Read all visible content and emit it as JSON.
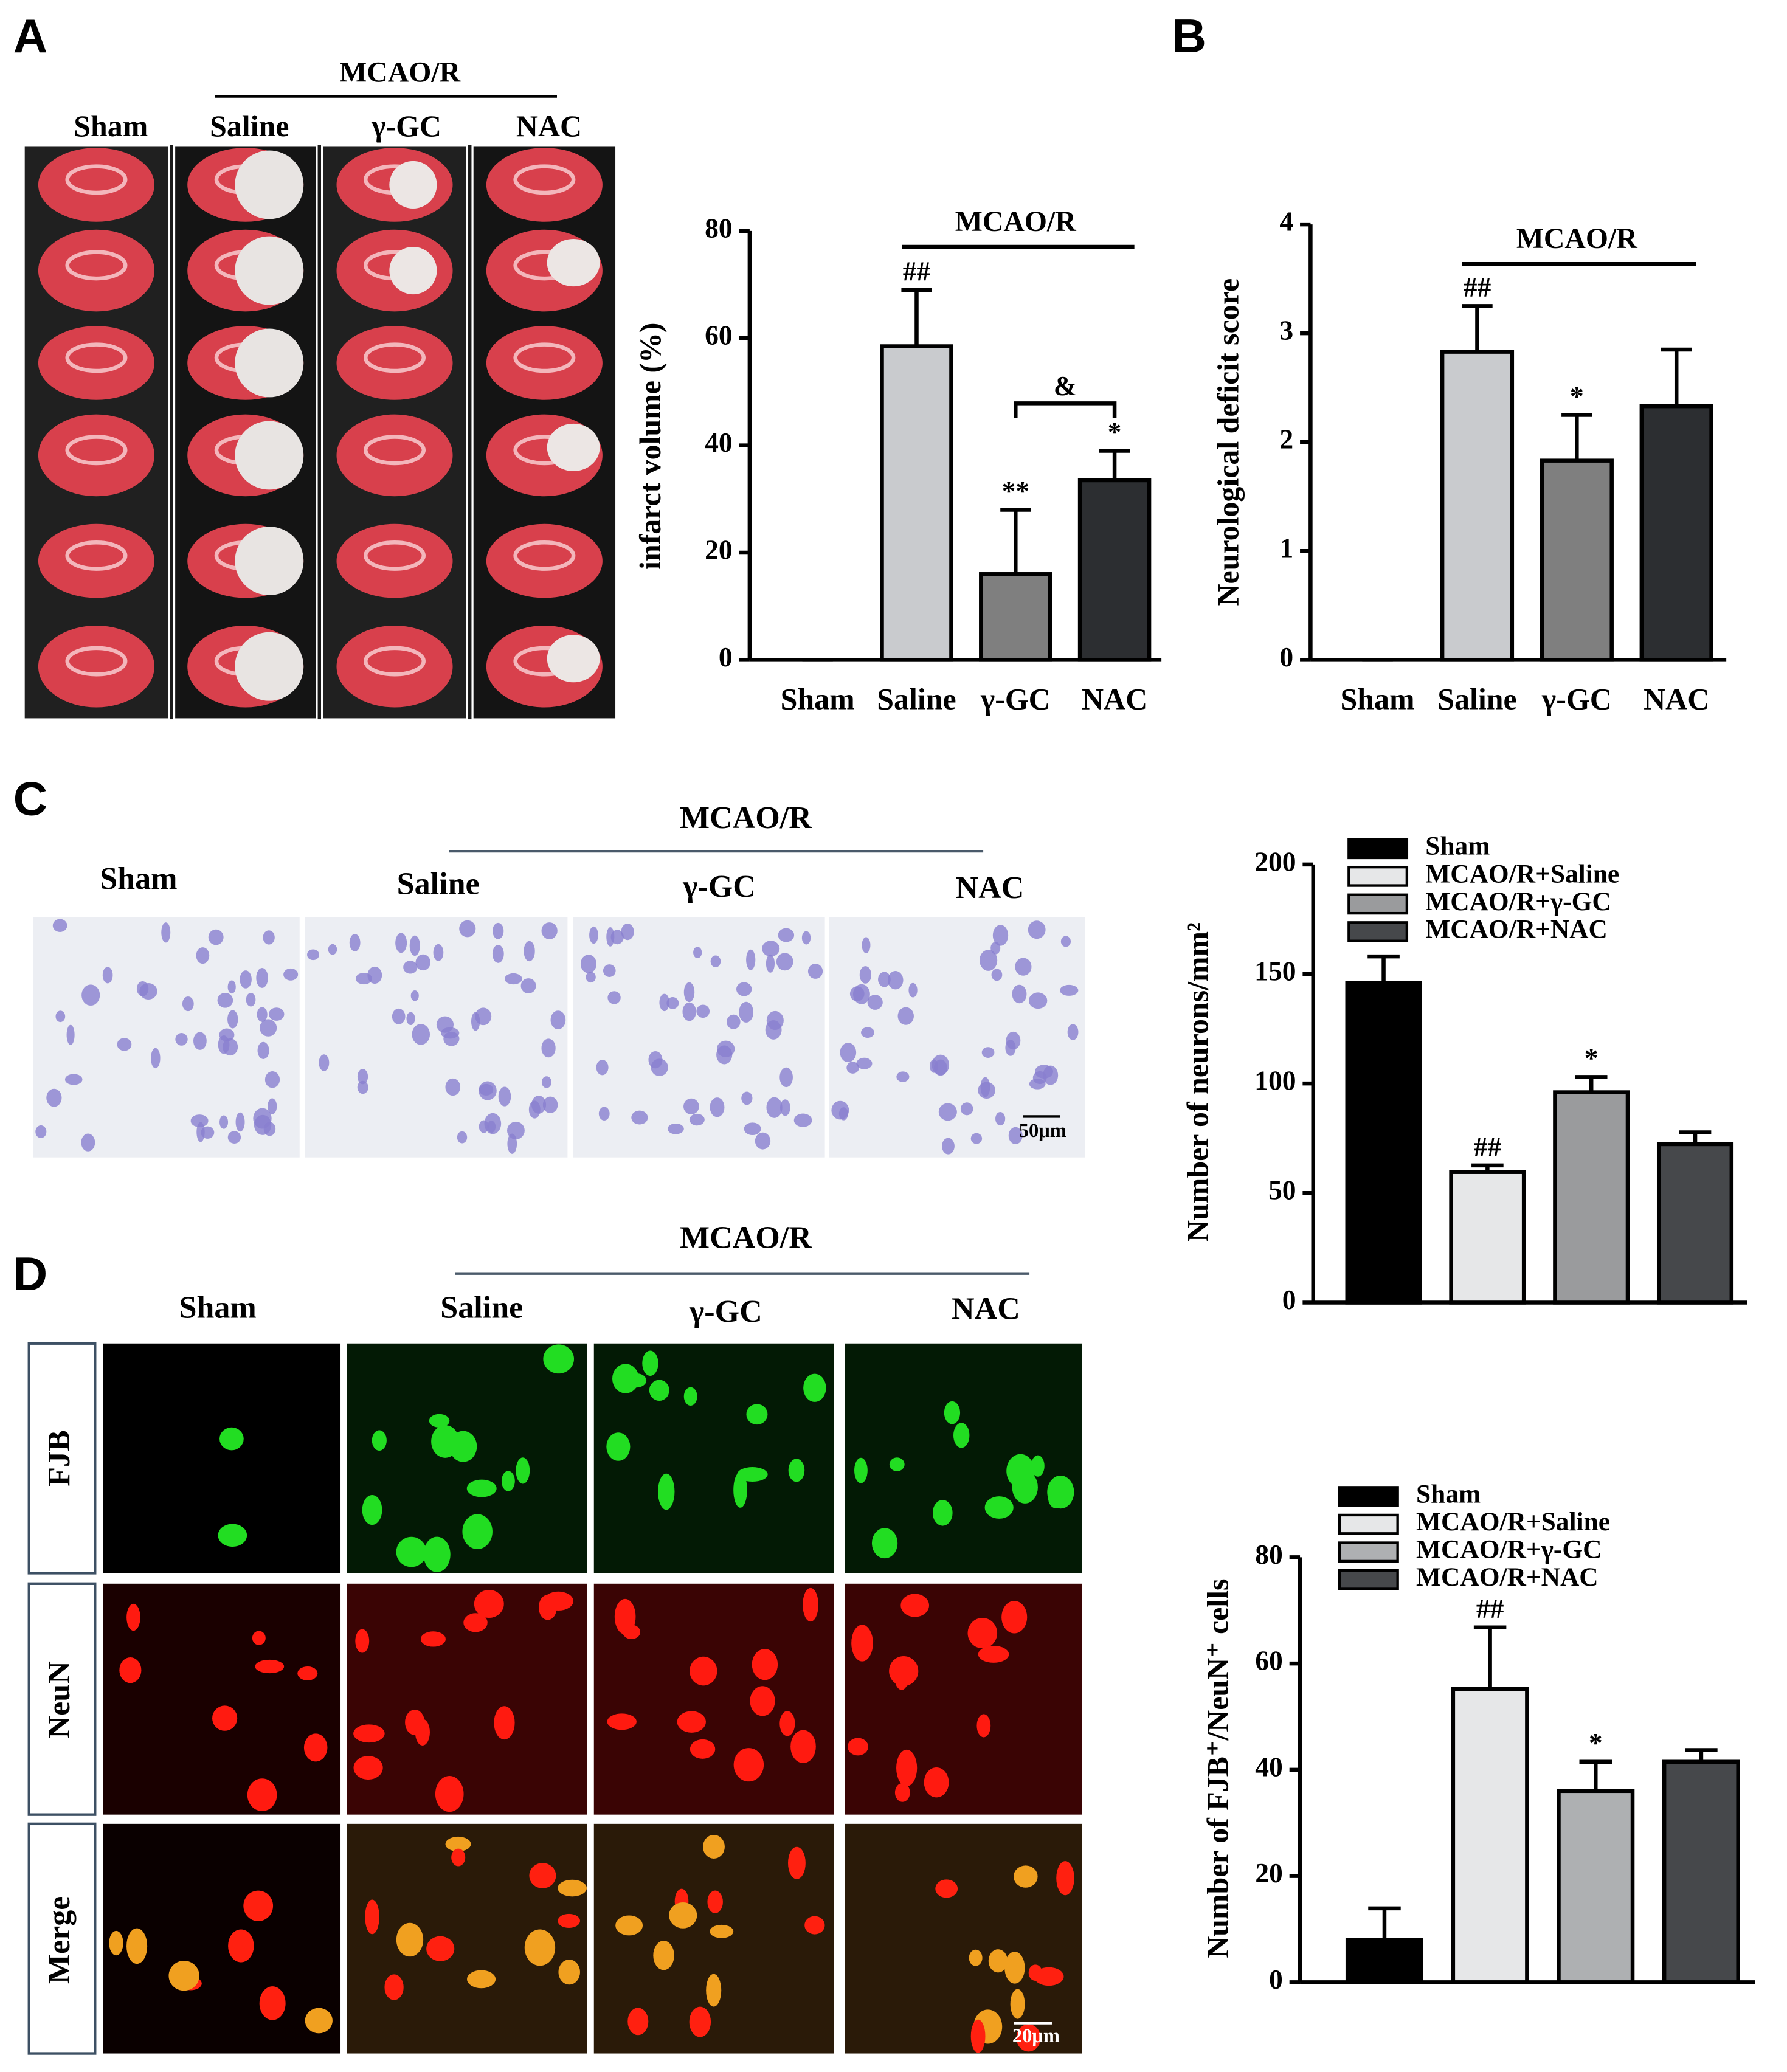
{
  "figure": {
    "panel_labels": [
      "A",
      "B",
      "C",
      "D"
    ]
  },
  "panel_a_images": {
    "group_label": "MCAO/R",
    "columns": [
      "Sham",
      "Saline",
      "γ-GC",
      "NAC"
    ]
  },
  "panel_c_images": {
    "group_label": "MCAO/R",
    "columns": [
      "Sham",
      "Saline",
      "γ-GC",
      "NAC"
    ],
    "scale_bar": "50μm"
  },
  "panel_d_images": {
    "group_label": "MCAO/R",
    "columns": [
      "Sham",
      "Saline",
      "γ-GC",
      "NAC"
    ],
    "rows": [
      "FJB",
      "NeuN",
      "Merge"
    ],
    "scale_bar": "20μm"
  },
  "chart_data": [
    {
      "type": "bar",
      "y_label": "infarct volume (%)",
      "categories": [
        "Sham",
        "Saline",
        "γ-GC",
        "NAC"
      ],
      "values": [
        0,
        58.5,
        16,
        33.5
      ],
      "errors": [
        0,
        10.5,
        12,
        5.5
      ],
      "colors": [
        "#c9cbce",
        "#c9cbce",
        "#7f7f7f",
        "#2c2e31"
      ],
      "significance": [
        null,
        "##",
        "**",
        "*"
      ],
      "group": {
        "label": "MCAO/R",
        "from": "Saline",
        "to": "NAC"
      },
      "comparison": {
        "label": "&",
        "from": "γ-GC",
        "to": "NAC"
      },
      "ylim": [
        0,
        80
      ],
      "yticks": [
        0,
        20,
        40,
        60,
        80
      ]
    },
    {
      "type": "bar",
      "y_label": "Neurological deficit score",
      "categories": [
        "Sham",
        "Saline",
        "γ-GC",
        "NAC"
      ],
      "values": [
        0,
        2.83,
        1.83,
        2.33
      ],
      "errors": [
        0,
        0.42,
        0.42,
        0.52
      ],
      "colors": [
        "#c9cbce",
        "#c9cbce",
        "#7f7f7f",
        "#2c2e31"
      ],
      "significance": [
        null,
        "##",
        "*",
        null
      ],
      "group": {
        "label": "MCAO/R",
        "from": "Saline",
        "to": "NAC"
      },
      "ylim": [
        0,
        4
      ],
      "yticks": [
        0,
        1,
        2,
        3,
        4
      ]
    },
    {
      "type": "bar",
      "y_label": "Number of neurons/mm²",
      "categories": [
        null,
        null,
        null,
        null
      ],
      "legend": [
        "Sham",
        "MCAO/R+Saline",
        "MCAO/R+γ-GC",
        "MCAO/R+NAC"
      ],
      "values": [
        146,
        59.6,
        96,
        72.3
      ],
      "errors": [
        12,
        3,
        7,
        5.4
      ],
      "colors": [
        "#000000",
        "#e6e7e8",
        "#9a9b9d",
        "#46484b"
      ],
      "significance": [
        null,
        "##",
        "*",
        null
      ],
      "ylim": [
        0,
        200
      ],
      "yticks": [
        0,
        50,
        100,
        150,
        200
      ]
    },
    {
      "type": "bar",
      "y_label": "Number of FJB⁺/NeuN⁺ cells",
      "categories": [
        null,
        null,
        null,
        null
      ],
      "legend": [
        "Sham",
        "MCAO/R+Saline",
        "MCAO/R+γ-GC",
        "MCAO/R+NAC"
      ],
      "values": [
        8,
        55.2,
        36,
        41.5
      ],
      "errors": [
        5.9,
        11.6,
        5.5,
        2.2
      ],
      "colors": [
        "#000000",
        "#e6e7e8",
        "#aeb0b2",
        "#46484b"
      ],
      "significance": [
        null,
        "##",
        "*",
        null
      ],
      "ylim": [
        0,
        80
      ],
      "yticks": [
        0,
        20,
        40,
        60,
        80
      ]
    }
  ]
}
